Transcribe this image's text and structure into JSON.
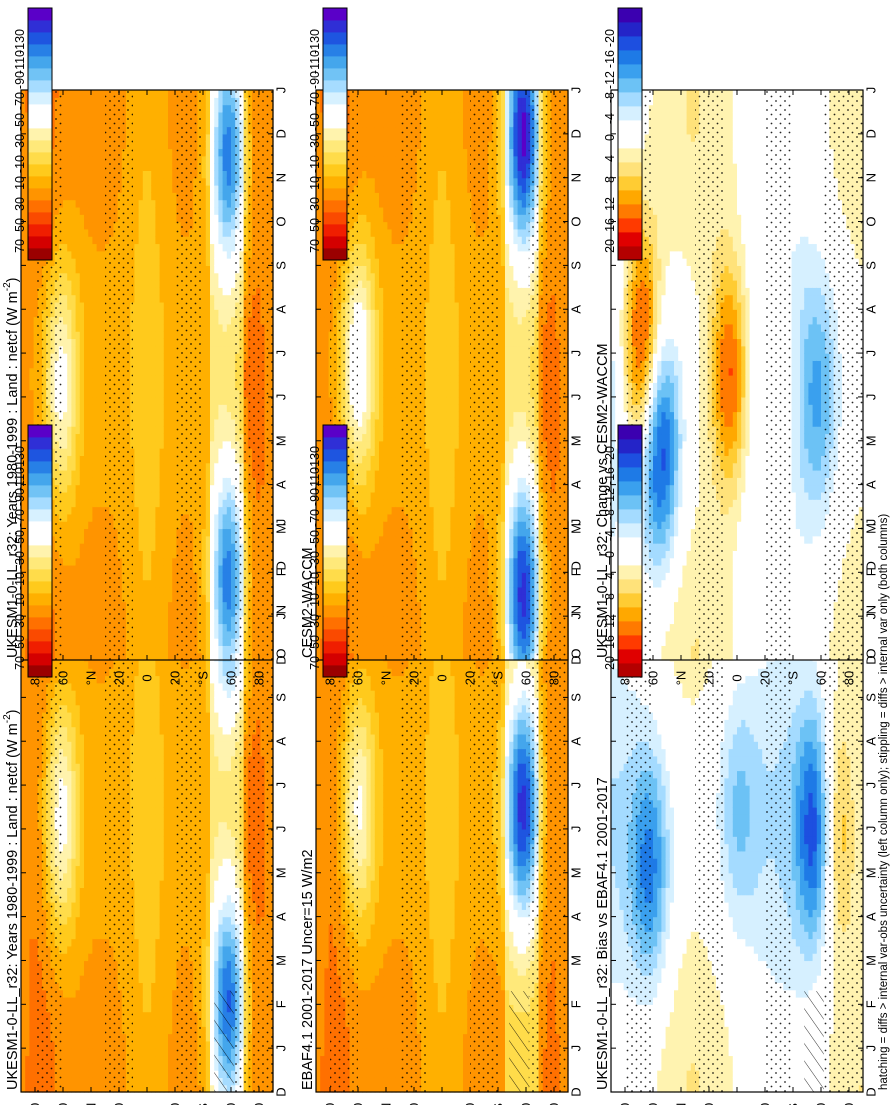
{
  "figure": {
    "footnote": "hatching = diffs > internal var-obs uncertainty (left column only); stippling = diffs > internal var only (both columns)",
    "orientation": "rotated 90 degrees counter-clockwise"
  },
  "colors": {
    "abs_scale": [
      "#9b0000",
      "#d40000",
      "#f01e00",
      "#fa4a00",
      "#ff7000",
      "#ff9400",
      "#ffb000",
      "#ffca1c",
      "#ffdc4a",
      "#ffe97a",
      "#fff3ad",
      "#ffffff",
      "#ffffff",
      "#d7f1ff",
      "#a6dcff",
      "#71c3f5",
      "#44a6ec",
      "#2780e6",
      "#1e55e0",
      "#2f2fd6",
      "#5a00c8"
    ],
    "diff_scale": [
      "#b40000",
      "#e00000",
      "#ff3a00",
      "#ff7a00",
      "#ffa800",
      "#ffcc33",
      "#ffe27a",
      "#fff3b0",
      "#ffffff",
      "#ffffff",
      "#d6f0ff",
      "#a4dbff",
      "#6cc2f5",
      "#3aa0ee",
      "#1e7ae6",
      "#1d4fe0",
      "#2424c8",
      "#3b00b0"
    ],
    "stipple": "#000000",
    "frame": "#000000"
  },
  "colorbars": {
    "abs_labels": [
      "70",
      "50",
      "30",
      "10",
      "-10",
      "-30",
      "-50",
      "-70",
      "-90",
      "-110",
      "-130"
    ],
    "diff_labels": [
      "20",
      "16",
      "12",
      "8",
      "4",
      "0",
      "-4",
      "-8",
      "-12",
      "-16",
      "-20"
    ]
  },
  "axes": {
    "month_labels": [
      "D",
      "J",
      "F",
      "M",
      "A",
      "M",
      "J",
      "J",
      "A",
      "S",
      "O",
      "N",
      "D",
      "J"
    ],
    "lat_labels": [
      "80",
      "60",
      "°N",
      "20",
      "0",
      "20",
      "°S",
      "60",
      "80"
    ]
  },
  "chart_data": [
    {
      "type": "heatmap",
      "title": "UKESM1-0-LL_r32: Years 1980-1999 : Land : netcf (W m",
      "title_sup": "-2",
      "title_close": ")",
      "x": "month (Dec through Jan, 14 labels)",
      "y": "latitude 90S-90N",
      "cbar": "abs",
      "ylim": [
        -90,
        90
      ],
      "hatching": true,
      "features": [
        {
          "lat": 62,
          "month": 6.3,
          "value": -45,
          "note": "NH summer negative minimum"
        },
        {
          "lat": -58,
          "month": 2.0,
          "value": -85,
          "note": "Southern Ocean band"
        },
        {
          "lat": -58,
          "month": 11.5,
          "value": -85,
          "note": "Southern Ocean band"
        },
        {
          "lat": -75,
          "month": 6.0,
          "value": 30,
          "note": "Antarctica positive"
        },
        {
          "lat": 80,
          "month": 6.0,
          "value": 25,
          "note": "Arctic positive"
        }
      ]
    },
    {
      "type": "heatmap",
      "title": "EBAF4.1 2001-2017 Uncer=15 W/m2",
      "x": "month",
      "y": "latitude",
      "cbar": "abs",
      "ylim": [
        -90,
        90
      ],
      "hatching": true,
      "features": [
        {
          "lat": 60,
          "month": 6.5,
          "value": -40
        },
        {
          "lat": -58,
          "month": 6.5,
          "value": -95
        },
        {
          "lat": -75,
          "month": 6.0,
          "value": 25
        },
        {
          "lat": 80,
          "month": 6.0,
          "value": 22
        }
      ]
    },
    {
      "type": "heatmap",
      "title": "UKESM1-0-LL_r32: Bias vs EBAF4.1 2001-2017",
      "x": "month",
      "y": "latitude",
      "cbar": "diff",
      "ylim": [
        -90,
        90
      ],
      "hatching": true,
      "features": [
        {
          "lat": -58,
          "month": 6.0,
          "value": -20
        },
        {
          "lat": 62,
          "month": 5.0,
          "value": -12
        },
        {
          "lat": -68,
          "month": 6.0,
          "value": 16
        },
        {
          "lat": 0,
          "month": 6.5,
          "value": -6
        }
      ]
    },
    {
      "type": "heatmap",
      "title": "UKESM1-0-LL_r32: Years 1980-1999 : Land : netcf (W m",
      "title_sup": "-2",
      "title_close": ")",
      "x": "month",
      "y": "latitude",
      "cbar": "abs",
      "ylim": [
        -90,
        90
      ],
      "hatching": false,
      "features": [
        {
          "lat": 62,
          "month": 6.3,
          "value": -45
        },
        {
          "lat": -58,
          "month": 1.8,
          "value": -80
        },
        {
          "lat": -58,
          "month": 11.6,
          "value": -80
        },
        {
          "lat": -75,
          "month": 6.0,
          "value": 30
        }
      ]
    },
    {
      "type": "heatmap",
      "title": "CESM2-WACCM",
      "x": "month",
      "y": "latitude",
      "cbar": "abs",
      "ylim": [
        -90,
        90
      ],
      "hatching": false,
      "features": [
        {
          "lat": 60,
          "month": 6.8,
          "value": -55
        },
        {
          "lat": -58,
          "month": 1.5,
          "value": -100
        },
        {
          "lat": -58,
          "month": 12.0,
          "value": -110
        },
        {
          "lat": -75,
          "month": 6.0,
          "value": 28
        }
      ]
    },
    {
      "type": "heatmap",
      "title": "UKESM1-0-LL_r32: Change vs CESM2-WACCM",
      "x": "month",
      "y": "latitude",
      "cbar": "diff",
      "ylim": [
        -90,
        90
      ],
      "hatching": false,
      "features": [
        {
          "lat": 68,
          "month": 7.2,
          "value": 20
        },
        {
          "lat": 55,
          "month": 4.8,
          "value": -18
        },
        {
          "lat": 5,
          "month": 6.5,
          "value": 16
        },
        {
          "lat": -30,
          "month": 6.0,
          "value": 6
        },
        {
          "lat": -58,
          "month": 6.0,
          "value": -8
        }
      ]
    }
  ]
}
